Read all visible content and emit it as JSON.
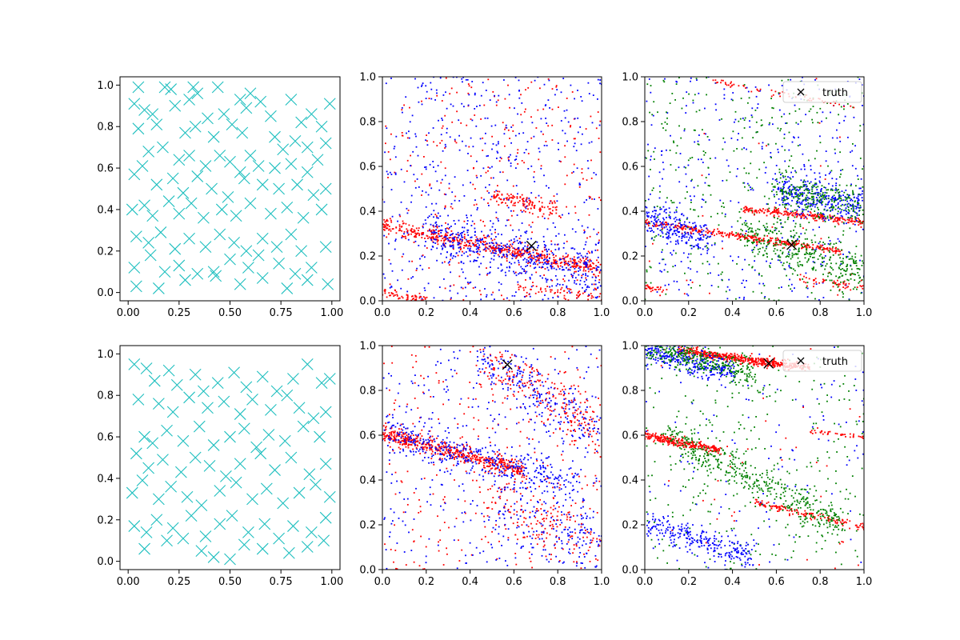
{
  "colors": {
    "cross": "#1fbfbf",
    "red": "#ff0000",
    "blue": "#0000ff",
    "green": "#008000",
    "truth": "#000000"
  },
  "chart_data": [
    {
      "type": "scatter",
      "id": "p1",
      "xlim": [
        -0.04,
        1.04
      ],
      "ylim": [
        -0.04,
        1.04
      ],
      "xticks": [
        "0.00",
        "0.25",
        "0.50",
        "0.75",
        "1.00"
      ],
      "yticks": [
        "0.0",
        "0.2",
        "0.4",
        "0.6",
        "0.8",
        "1.0"
      ],
      "marker": "x",
      "color": "cross",
      "points": [
        [
          0.05,
          0.99
        ],
        [
          0.18,
          0.99
        ],
        [
          0.21,
          0.98
        ],
        [
          0.32,
          0.99
        ],
        [
          0.44,
          0.99
        ],
        [
          0.03,
          0.91
        ],
        [
          0.08,
          0.88
        ],
        [
          0.12,
          0.86
        ],
        [
          0.23,
          0.9
        ],
        [
          0.3,
          0.93
        ],
        [
          0.34,
          0.96
        ],
        [
          0.39,
          0.84
        ],
        [
          0.47,
          0.86
        ],
        [
          0.55,
          0.93
        ],
        [
          0.58,
          0.89
        ],
        [
          0.6,
          0.96
        ],
        [
          0.65,
          0.92
        ],
        [
          0.7,
          0.85
        ],
        [
          0.8,
          0.93
        ],
        [
          0.85,
          0.82
        ],
        [
          0.9,
          0.86
        ],
        [
          0.95,
          0.8
        ],
        [
          0.99,
          0.91
        ],
        [
          0.05,
          0.79
        ],
        [
          0.14,
          0.81
        ],
        [
          0.28,
          0.77
        ],
        [
          0.33,
          0.8
        ],
        [
          0.42,
          0.75
        ],
        [
          0.51,
          0.81
        ],
        [
          0.56,
          0.77
        ],
        [
          0.72,
          0.75
        ],
        [
          0.76,
          0.69
        ],
        [
          0.82,
          0.73
        ],
        [
          0.88,
          0.7
        ],
        [
          0.97,
          0.72
        ],
        [
          0.1,
          0.68
        ],
        [
          0.17,
          0.7
        ],
        [
          0.25,
          0.64
        ],
        [
          0.3,
          0.66
        ],
        [
          0.38,
          0.61
        ],
        [
          0.45,
          0.66
        ],
        [
          0.5,
          0.63
        ],
        [
          0.55,
          0.58
        ],
        [
          0.6,
          0.66
        ],
        [
          0.64,
          0.61
        ],
        [
          0.72,
          0.6
        ],
        [
          0.8,
          0.62
        ],
        [
          0.88,
          0.58
        ],
        [
          0.93,
          0.64
        ],
        [
          0.03,
          0.57
        ],
        [
          0.07,
          0.61
        ],
        [
          0.14,
          0.52
        ],
        [
          0.22,
          0.55
        ],
        [
          0.27,
          0.48
        ],
        [
          0.34,
          0.56
        ],
        [
          0.41,
          0.5
        ],
        [
          0.49,
          0.46
        ],
        [
          0.57,
          0.55
        ],
        [
          0.66,
          0.52
        ],
        [
          0.74,
          0.5
        ],
        [
          0.83,
          0.52
        ],
        [
          0.91,
          0.47
        ],
        [
          0.97,
          0.5
        ],
        [
          0.02,
          0.4
        ],
        [
          0.08,
          0.42
        ],
        [
          0.12,
          0.37
        ],
        [
          0.2,
          0.44
        ],
        [
          0.25,
          0.38
        ],
        [
          0.31,
          0.43
        ],
        [
          0.37,
          0.36
        ],
        [
          0.46,
          0.4
        ],
        [
          0.53,
          0.37
        ],
        [
          0.6,
          0.43
        ],
        [
          0.7,
          0.38
        ],
        [
          0.78,
          0.41
        ],
        [
          0.86,
          0.36
        ],
        [
          0.95,
          0.4
        ],
        [
          0.04,
          0.27
        ],
        [
          0.1,
          0.24
        ],
        [
          0.16,
          0.29
        ],
        [
          0.23,
          0.21
        ],
        [
          0.3,
          0.26
        ],
        [
          0.38,
          0.22
        ],
        [
          0.45,
          0.28
        ],
        [
          0.52,
          0.24
        ],
        [
          0.58,
          0.2
        ],
        [
          0.66,
          0.26
        ],
        [
          0.73,
          0.22
        ],
        [
          0.8,
          0.28
        ],
        [
          0.85,
          0.2
        ],
        [
          0.97,
          0.22
        ],
        [
          0.03,
          0.12
        ],
        [
          0.11,
          0.18
        ],
        [
          0.18,
          0.1
        ],
        [
          0.25,
          0.13
        ],
        [
          0.34,
          0.09
        ],
        [
          0.42,
          0.1
        ],
        [
          0.5,
          0.16
        ],
        [
          0.59,
          0.12
        ],
        [
          0.66,
          0.07
        ],
        [
          0.74,
          0.14
        ],
        [
          0.82,
          0.09
        ],
        [
          0.9,
          0.12
        ],
        [
          0.98,
          0.04
        ],
        [
          0.04,
          0.03
        ],
        [
          0.15,
          0.02
        ],
        [
          0.28,
          0.06
        ],
        [
          0.43,
          0.08
        ],
        [
          0.55,
          0.04
        ],
        [
          0.64,
          0.18
        ],
        [
          0.78,
          0.02
        ],
        [
          0.88,
          0.06
        ]
      ]
    },
    {
      "type": "scatter",
      "id": "p2",
      "xlim": [
        0,
        1
      ],
      "ylim": [
        0,
        1
      ],
      "xticks": [
        "0.0",
        "0.2",
        "0.4",
        "0.6",
        "0.8",
        "1.0"
      ],
      "yticks": [
        "0.0",
        "0.2",
        "0.4",
        "0.6",
        "0.8",
        "1.0"
      ],
      "truth": [
        0.68,
        0.245
      ],
      "bands": [
        {
          "color": "red",
          "x0": 0.0,
          "y0": 0.34,
          "x1": 1.0,
          "y1": 0.14,
          "spread": 0.018,
          "n": 550
        },
        {
          "color": "red",
          "x0": 0.5,
          "y0": 0.47,
          "x1": 0.8,
          "y1": 0.4,
          "spread": 0.02,
          "n": 120
        },
        {
          "color": "red",
          "x0": 0.0,
          "y0": 0.04,
          "x1": 0.2,
          "y1": 0.0,
          "spread": 0.01,
          "n": 60
        },
        {
          "color": "red",
          "x0": 0.6,
          "y0": 0.06,
          "x1": 1.0,
          "y1": 0.02,
          "spread": 0.012,
          "n": 60
        },
        {
          "color": "blue",
          "x0": 0.2,
          "y0": 0.3,
          "x1": 1.0,
          "y1": 0.12,
          "spread": 0.05,
          "n": 450
        }
      ],
      "uniform": [
        {
          "color": "red",
          "n": 320
        },
        {
          "color": "blue",
          "n": 520
        }
      ]
    },
    {
      "type": "scatter",
      "id": "p3",
      "xlim": [
        0,
        1
      ],
      "ylim": [
        0,
        1
      ],
      "xticks": [
        "0.0",
        "0.2",
        "0.4",
        "0.6",
        "0.8",
        "1.0"
      ],
      "yticks": [
        "0.0",
        "0.2",
        "0.4",
        "0.6",
        "0.8",
        "1.0"
      ],
      "truth": [
        0.67,
        0.25
      ],
      "legend": {
        "label": "truth",
        "loc": "top-right"
      },
      "bands": [
        {
          "color": "red",
          "x0": 0.0,
          "y0": 0.35,
          "x1": 0.9,
          "y1": 0.22,
          "spread": 0.008,
          "n": 320
        },
        {
          "color": "red",
          "x0": 0.45,
          "y0": 0.41,
          "x1": 1.0,
          "y1": 0.35,
          "spread": 0.008,
          "n": 240
        },
        {
          "color": "red",
          "x0": 0.3,
          "y0": 0.98,
          "x1": 1.0,
          "y1": 0.86,
          "spread": 0.008,
          "n": 60
        },
        {
          "color": "red",
          "x0": 0.0,
          "y0": 0.06,
          "x1": 0.1,
          "y1": 0.05,
          "spread": 0.006,
          "n": 25
        },
        {
          "color": "red",
          "x0": 0.7,
          "y0": 0.1,
          "x1": 1.0,
          "y1": 0.06,
          "spread": 0.008,
          "n": 50
        },
        {
          "color": "blue",
          "x0": 0.6,
          "y0": 0.5,
          "x1": 1.0,
          "y1": 0.42,
          "spread": 0.04,
          "n": 300
        },
        {
          "color": "blue",
          "x0": 0.0,
          "y0": 0.38,
          "x1": 0.3,
          "y1": 0.26,
          "spread": 0.04,
          "n": 220
        },
        {
          "color": "green",
          "x0": 0.6,
          "y0": 0.5,
          "x1": 1.0,
          "y1": 0.42,
          "spread": 0.045,
          "n": 250
        },
        {
          "color": "green",
          "x0": 0.45,
          "y0": 0.3,
          "x1": 1.0,
          "y1": 0.12,
          "spread": 0.05,
          "n": 320
        }
      ],
      "uniform": [
        {
          "color": "blue",
          "n": 380
        },
        {
          "color": "green",
          "n": 380
        },
        {
          "color": "red",
          "n": 30
        }
      ]
    },
    {
      "type": "scatter",
      "id": "p4",
      "xlim": [
        -0.04,
        1.04
      ],
      "ylim": [
        -0.04,
        1.04
      ],
      "xticks": [
        "0.00",
        "0.25",
        "0.50",
        "0.75",
        "1.00"
      ],
      "yticks": [
        "0.0",
        "0.2",
        "0.4",
        "0.6",
        "0.8",
        "1.0"
      ],
      "marker": "x",
      "color": "cross",
      "points": [
        [
          0.03,
          0.95
        ],
        [
          0.09,
          0.93
        ],
        [
          0.13,
          0.87
        ],
        [
          0.2,
          0.92
        ],
        [
          0.24,
          0.85
        ],
        [
          0.33,
          0.9
        ],
        [
          0.37,
          0.82
        ],
        [
          0.44,
          0.86
        ],
        [
          0.52,
          0.91
        ],
        [
          0.58,
          0.84
        ],
        [
          0.66,
          0.89
        ],
        [
          0.73,
          0.82
        ],
        [
          0.81,
          0.88
        ],
        [
          0.88,
          0.95
        ],
        [
          0.95,
          0.86
        ],
        [
          0.99,
          0.88
        ],
        [
          0.05,
          0.78
        ],
        [
          0.15,
          0.76
        ],
        [
          0.22,
          0.72
        ],
        [
          0.3,
          0.79
        ],
        [
          0.39,
          0.74
        ],
        [
          0.47,
          0.77
        ],
        [
          0.55,
          0.71
        ],
        [
          0.61,
          0.78
        ],
        [
          0.7,
          0.73
        ],
        [
          0.78,
          0.8
        ],
        [
          0.84,
          0.74
        ],
        [
          0.91,
          0.69
        ],
        [
          0.97,
          0.72
        ],
        [
          0.08,
          0.6
        ],
        [
          0.12,
          0.57
        ],
        [
          0.19,
          0.63
        ],
        [
          0.27,
          0.58
        ],
        [
          0.35,
          0.65
        ],
        [
          0.42,
          0.56
        ],
        [
          0.5,
          0.6
        ],
        [
          0.57,
          0.64
        ],
        [
          0.63,
          0.55
        ],
        [
          0.69,
          0.61
        ],
        [
          0.77,
          0.58
        ],
        [
          0.86,
          0.65
        ],
        [
          0.94,
          0.6
        ],
        [
          0.04,
          0.52
        ],
        [
          0.1,
          0.45
        ],
        [
          0.17,
          0.49
        ],
        [
          0.26,
          0.43
        ],
        [
          0.33,
          0.5
        ],
        [
          0.4,
          0.46
        ],
        [
          0.48,
          0.41
        ],
        [
          0.55,
          0.47
        ],
        [
          0.65,
          0.52
        ],
        [
          0.72,
          0.44
        ],
        [
          0.8,
          0.5
        ],
        [
          0.89,
          0.42
        ],
        [
          0.97,
          0.47
        ],
        [
          0.02,
          0.33
        ],
        [
          0.07,
          0.39
        ],
        [
          0.15,
          0.3
        ],
        [
          0.21,
          0.36
        ],
        [
          0.29,
          0.31
        ],
        [
          0.36,
          0.27
        ],
        [
          0.45,
          0.34
        ],
        [
          0.53,
          0.38
        ],
        [
          0.61,
          0.3
        ],
        [
          0.68,
          0.35
        ],
        [
          0.76,
          0.28
        ],
        [
          0.84,
          0.33
        ],
        [
          0.92,
          0.37
        ],
        [
          0.99,
          0.31
        ],
        [
          0.03,
          0.17
        ],
        [
          0.09,
          0.14
        ],
        [
          0.14,
          0.2
        ],
        [
          0.22,
          0.16
        ],
        [
          0.31,
          0.22
        ],
        [
          0.38,
          0.12
        ],
        [
          0.45,
          0.18
        ],
        [
          0.51,
          0.22
        ],
        [
          0.59,
          0.14
        ],
        [
          0.67,
          0.18
        ],
        [
          0.74,
          0.11
        ],
        [
          0.81,
          0.17
        ],
        [
          0.9,
          0.14
        ],
        [
          0.97,
          0.21
        ],
        [
          0.08,
          0.06
        ],
        [
          0.19,
          0.1
        ],
        [
          0.27,
          0.11
        ],
        [
          0.36,
          0.05
        ],
        [
          0.42,
          0.02
        ],
        [
          0.5,
          0.01
        ],
        [
          0.57,
          0.08
        ],
        [
          0.66,
          0.06
        ],
        [
          0.79,
          0.04
        ],
        [
          0.88,
          0.07
        ],
        [
          0.96,
          0.1
        ]
      ]
    },
    {
      "type": "scatter",
      "id": "p5",
      "xlim": [
        0,
        1
      ],
      "ylim": [
        0,
        1
      ],
      "xticks": [
        "0.0",
        "0.2",
        "0.4",
        "0.6",
        "0.8",
        "1.0"
      ],
      "yticks": [
        "0.0",
        "0.2",
        "0.4",
        "0.6",
        "0.8",
        "1.0"
      ],
      "truth": [
        0.57,
        0.915
      ],
      "bands": [
        {
          "color": "red",
          "x0": 0.0,
          "y0": 0.61,
          "x1": 0.65,
          "y1": 0.44,
          "spread": 0.018,
          "n": 520
        },
        {
          "color": "blue",
          "x0": 0.0,
          "y0": 0.62,
          "x1": 0.9,
          "y1": 0.38,
          "spread": 0.04,
          "n": 380
        },
        {
          "color": "red",
          "x0": 0.45,
          "y0": 0.96,
          "x1": 1.0,
          "y1": 0.6,
          "spread": 0.06,
          "n": 220
        },
        {
          "color": "blue",
          "x0": 0.45,
          "y0": 0.96,
          "x1": 1.0,
          "y1": 0.6,
          "spread": 0.06,
          "n": 220
        },
        {
          "color": "red",
          "x0": 0.5,
          "y0": 0.3,
          "x1": 1.0,
          "y1": 0.1,
          "spread": 0.08,
          "n": 150
        },
        {
          "color": "blue",
          "x0": 0.5,
          "y0": 0.3,
          "x1": 1.0,
          "y1": 0.1,
          "spread": 0.08,
          "n": 150
        }
      ],
      "uniform": [
        {
          "color": "red",
          "n": 300
        },
        {
          "color": "blue",
          "n": 320
        }
      ]
    },
    {
      "type": "scatter",
      "id": "p6",
      "xlim": [
        0,
        1
      ],
      "ylim": [
        0,
        1
      ],
      "xticks": [
        "0.0",
        "0.2",
        "0.4",
        "0.6",
        "0.8",
        "1.0"
      ],
      "yticks": [
        "0.0",
        "0.2",
        "0.4",
        "0.6",
        "0.8",
        "1.0"
      ],
      "truth": [
        0.565,
        0.92
      ],
      "legend": {
        "label": "truth",
        "loc": "top-right"
      },
      "bands": [
        {
          "color": "red",
          "x0": 0.15,
          "y0": 0.98,
          "x1": 0.75,
          "y1": 0.9,
          "spread": 0.01,
          "n": 500
        },
        {
          "color": "blue",
          "x0": 0.0,
          "y0": 0.99,
          "x1": 0.4,
          "y1": 0.88,
          "spread": 0.03,
          "n": 320
        },
        {
          "color": "green",
          "x0": 0.0,
          "y0": 0.99,
          "x1": 0.5,
          "y1": 0.88,
          "spread": 0.03,
          "n": 300
        },
        {
          "color": "red",
          "x0": 0.0,
          "y0": 0.6,
          "x1": 0.35,
          "y1": 0.53,
          "spread": 0.01,
          "n": 260
        },
        {
          "color": "red",
          "x0": 0.75,
          "y0": 0.62,
          "x1": 1.0,
          "y1": 0.59,
          "spread": 0.006,
          "n": 40
        },
        {
          "color": "red",
          "x0": 0.5,
          "y0": 0.3,
          "x1": 1.0,
          "y1": 0.19,
          "spread": 0.008,
          "n": 140
        },
        {
          "color": "green",
          "x0": 0.1,
          "y0": 0.6,
          "x1": 0.9,
          "y1": 0.2,
          "spread": 0.04,
          "n": 420
        },
        {
          "color": "blue",
          "x0": 0.0,
          "y0": 0.2,
          "x1": 0.5,
          "y1": 0.06,
          "spread": 0.03,
          "n": 260
        }
      ],
      "uniform": [
        {
          "color": "green",
          "n": 320
        },
        {
          "color": "blue",
          "n": 120
        },
        {
          "color": "red",
          "n": 40
        }
      ]
    }
  ]
}
